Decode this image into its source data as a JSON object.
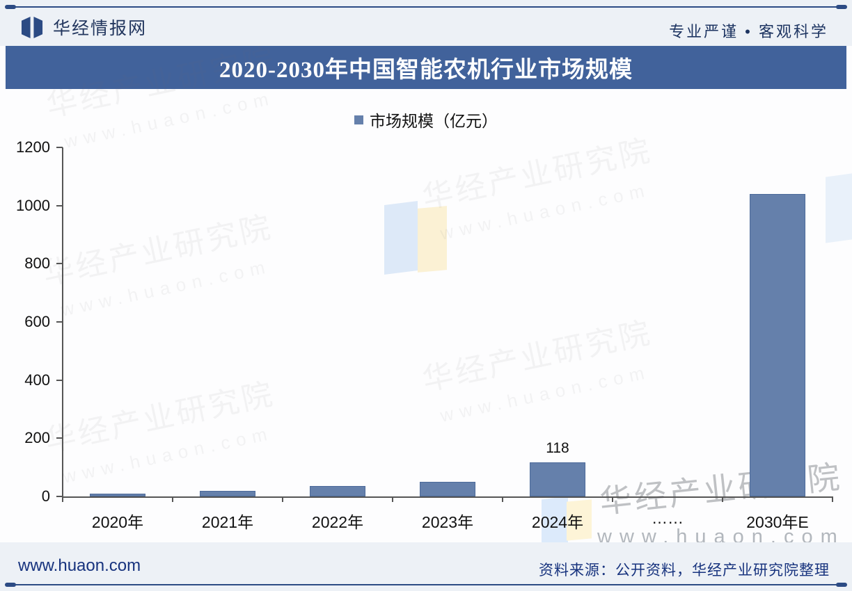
{
  "header": {
    "brand": "华经情报网",
    "slogan": "专业严谨 • 客观科学"
  },
  "watermark": {
    "line1": "华经产业研究院",
    "line2": "www.huaon.com"
  },
  "footer": {
    "site": "www.huaon.com",
    "source": "资料来源：公开资料，华经产业研究院整理"
  },
  "colors": {
    "accent": "#41629b",
    "bar_fill": "#6580ab",
    "bar_border": "#4c6a9a",
    "axis": "#555555",
    "label_text": "#111111",
    "header_text": "#1d3461",
    "footer_text": "#17337e"
  },
  "chart_data": {
    "type": "bar",
    "title": "2020-2030年中国智能农机行业市场规模",
    "legend": [
      "市场规模（亿元）"
    ],
    "legend_position": "top-center",
    "categories": [
      "2020年",
      "2021年",
      "2022年",
      "2023年",
      "2024年",
      "……",
      "2030年E"
    ],
    "values": [
      10,
      20,
      35,
      50,
      118,
      null,
      1040
    ],
    "point_labels": [
      "",
      "",
      "",
      "",
      "118",
      "",
      ""
    ],
    "xlabel": "",
    "ylabel": "",
    "ylim": [
      0,
      1200
    ],
    "ytick_step": 200,
    "yticks": [
      0,
      200,
      400,
      600,
      800,
      1000,
      1200
    ],
    "grid": false
  }
}
